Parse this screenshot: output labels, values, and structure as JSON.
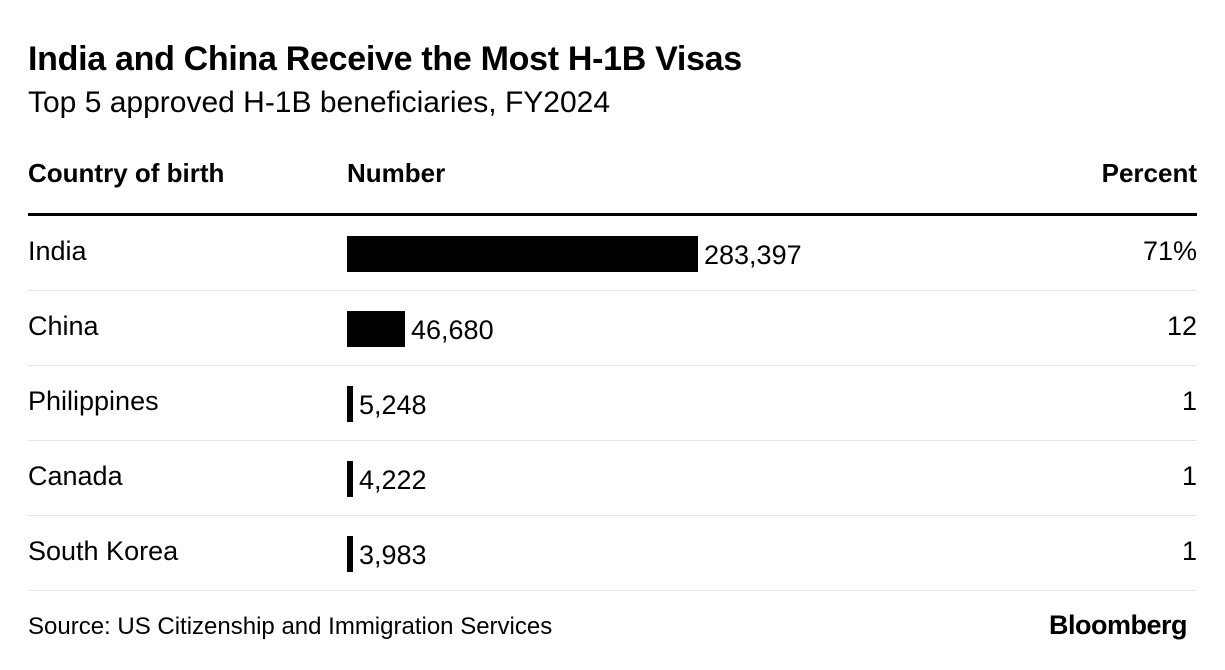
{
  "chart_data": {
    "type": "table",
    "title": "India and China Receive the Most H-1B Visas",
    "subtitle": "Top 5 approved H-1B beneficiaries, FY2024",
    "columns": [
      "Country of birth",
      "Number",
      "Percent"
    ],
    "rows": [
      {
        "country": "India",
        "number": 283397,
        "number_label": "283,397",
        "percent_label": "71%"
      },
      {
        "country": "China",
        "number": 46680,
        "number_label": "46,680",
        "percent_label": "12"
      },
      {
        "country": "Philippines",
        "number": 5248,
        "number_label": "5,248",
        "percent_label": "1"
      },
      {
        "country": "Canada",
        "number": 4222,
        "number_label": "4,222",
        "percent_label": "1"
      },
      {
        "country": "South Korea",
        "number": 3983,
        "number_label": "3,983",
        "percent_label": "1"
      }
    ],
    "source": "Source: US Citizenship and Immigration Services",
    "logo": "Bloomberg",
    "colors": {
      "bar": "#000000",
      "divider": "#e6e6e6",
      "text": "#000000"
    }
  }
}
